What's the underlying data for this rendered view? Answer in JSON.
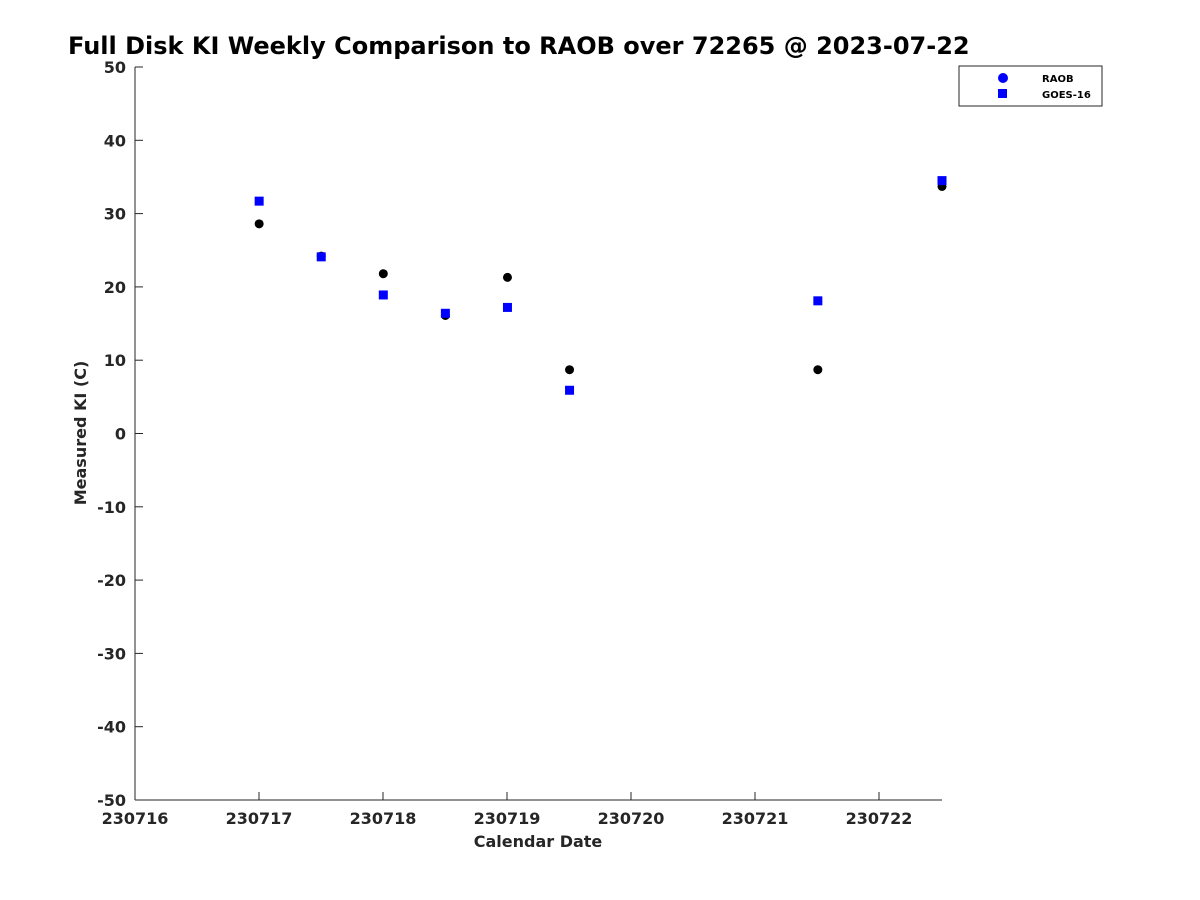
{
  "chart_data": {
    "type": "scatter",
    "title": "Full Disk KI Weekly Comparison to RAOB over 72265 @ 2023-07-22",
    "xlabel": "Calendar Date",
    "ylabel": "Measured KI (C)",
    "x_dates": [
      "2023-07-16",
      "2023-07-22T12:00"
    ],
    "xticks": [
      "230716",
      "230717",
      "230718",
      "230719",
      "230720",
      "230721",
      "230722"
    ],
    "ylim": [
      -50,
      50
    ],
    "yticks": [
      "-50",
      "-40",
      "-30",
      "-20",
      "-10",
      "0",
      "10",
      "20",
      "30",
      "40",
      "50"
    ],
    "grid": false,
    "legend_position": "top-right",
    "series": [
      {
        "name": "RAOB",
        "marker": "circle",
        "legend_color": "#0000ff",
        "point_color": "#000000",
        "points": [
          {
            "x": "2023-07-17T00:00",
            "y": 28.6
          },
          {
            "x": "2023-07-17T12:00",
            "y": 24.2
          },
          {
            "x": "2023-07-18T00:00",
            "y": 21.8
          },
          {
            "x": "2023-07-18T12:00",
            "y": 16.1
          },
          {
            "x": "2023-07-19T00:00",
            "y": 21.3
          },
          {
            "x": "2023-07-19T12:00",
            "y": 8.7
          },
          {
            "x": "2023-07-21T12:00",
            "y": 8.7
          },
          {
            "x": "2023-07-22T12:00",
            "y": 33.7
          }
        ]
      },
      {
        "name": "GOES-16",
        "marker": "square",
        "legend_color": "#0000ff",
        "point_color": "#0000ff",
        "points": [
          {
            "x": "2023-07-17T00:00",
            "y": 31.7
          },
          {
            "x": "2023-07-17T12:00",
            "y": 24.1
          },
          {
            "x": "2023-07-18T00:00",
            "y": 18.9
          },
          {
            "x": "2023-07-18T12:00",
            "y": 16.4
          },
          {
            "x": "2023-07-19T00:00",
            "y": 17.2
          },
          {
            "x": "2023-07-19T12:00",
            "y": 5.9
          },
          {
            "x": "2023-07-21T12:00",
            "y": 18.1
          },
          {
            "x": "2023-07-22T12:00",
            "y": 34.5
          }
        ]
      }
    ]
  }
}
